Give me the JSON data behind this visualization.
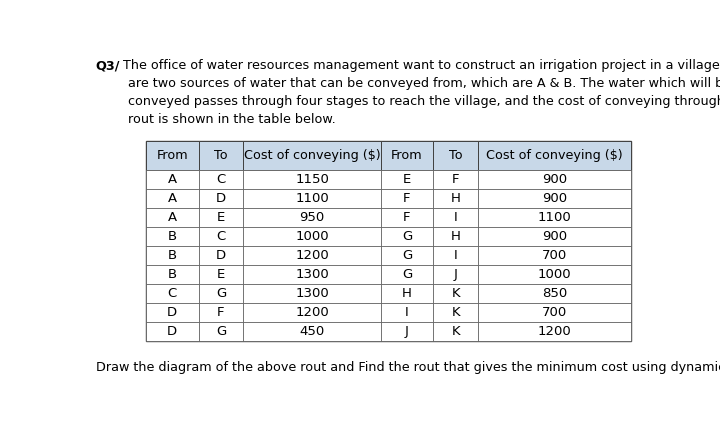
{
  "title_bold": "Q3/",
  "title_line1": " The office of water resources management want to construct an irrigation project in a village. There",
  "title_line2": "are two sources of water that can be conveyed from, which are A & B. The water which will be",
  "title_line3": "conveyed passes through four stages to reach the village, and the cost of conveying through each",
  "title_line4": "rout is shown in the table below.",
  "footer_text": "Draw the diagram of the above rout and Find the rout that gives the minimum cost using dynamic program.",
  "headers": [
    "From",
    "To",
    "Cost of conveying ($)",
    "From",
    "To",
    "Cost of conveying ($)"
  ],
  "left_data": [
    [
      "A",
      "C",
      "1150"
    ],
    [
      "A",
      "D",
      "1100"
    ],
    [
      "A",
      "E",
      "950"
    ],
    [
      "B",
      "C",
      "1000"
    ],
    [
      "B",
      "D",
      "1200"
    ],
    [
      "B",
      "E",
      "1300"
    ],
    [
      "C",
      "G",
      "1300"
    ],
    [
      "D",
      "F",
      "1200"
    ],
    [
      "D",
      "G",
      "450"
    ]
  ],
  "right_data": [
    [
      "E",
      "F",
      "900"
    ],
    [
      "F",
      "H",
      "900"
    ],
    [
      "F",
      "I",
      "1100"
    ],
    [
      "G",
      "H",
      "900"
    ],
    [
      "G",
      "I",
      "700"
    ],
    [
      "G",
      "J",
      "1000"
    ],
    [
      "H",
      "K",
      "850"
    ],
    [
      "I",
      "K",
      "700"
    ],
    [
      "J",
      "K",
      "1200"
    ]
  ],
  "background_color": "#ffffff",
  "header_bg": "#c8d8e8",
  "text_color": "#000000",
  "font_size_text": 9.2,
  "font_size_table_data": 9.5,
  "font_size_header": 9.2,
  "title_indent": 0.068,
  "title_indent2": 0.078
}
